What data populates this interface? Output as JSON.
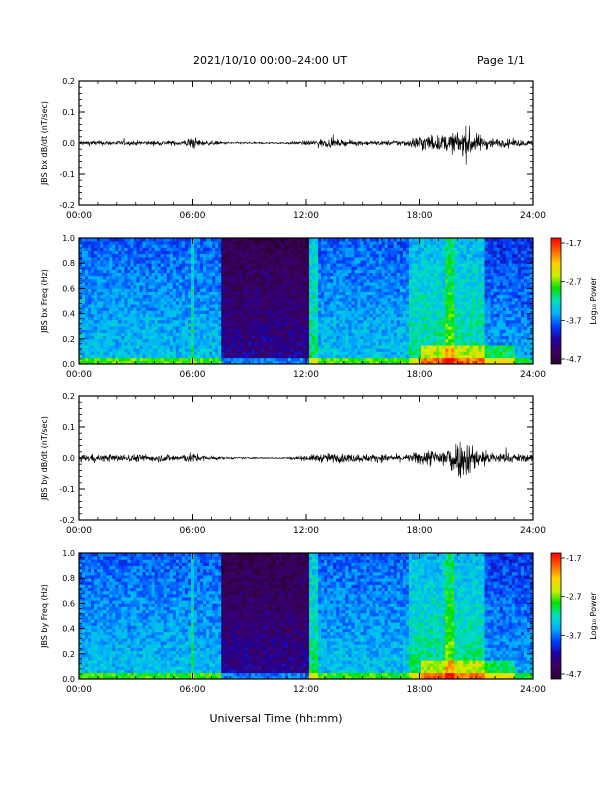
{
  "header": {
    "title": "2021/10/10  00:00–24:00 UT",
    "page": "Page 1/1"
  },
  "colors": {
    "spectrogram_map": [
      "#2a0033",
      "#3d005e",
      "#2000a0",
      "#0040ff",
      "#00b0ff",
      "#00e0c0",
      "#00e000",
      "#c8f000",
      "#ffd000",
      "#ff6000",
      "#ff0000"
    ],
    "trace": "#000000"
  },
  "chart_data": [
    {
      "type": "line",
      "ylabel": "JBS bx dB/dt (nT/sec)",
      "xlabel": "",
      "x_ticks": [
        "00:00",
        "06:00",
        "12:00",
        "18:00",
        "24:00"
      ],
      "xlim": [
        0,
        24
      ],
      "ylim": [
        -0.2,
        0.2
      ],
      "y_ticks": [
        "-0.2",
        "-0.1",
        "0.0",
        "0.1",
        "0.2"
      ],
      "envelope": {
        "hours": [
          0,
          2,
          4,
          5.5,
          6,
          6.5,
          8,
          10,
          11,
          12,
          13,
          14,
          16,
          17.5,
          18,
          19,
          20,
          20.5,
          21,
          22,
          23,
          24
        ],
        "amplitude": [
          0.015,
          0.012,
          0.012,
          0.014,
          0.035,
          0.015,
          0.006,
          0.004,
          0.005,
          0.012,
          0.025,
          0.015,
          0.012,
          0.02,
          0.05,
          0.04,
          0.06,
          0.09,
          0.05,
          0.025,
          0.02,
          0.015
        ]
      }
    },
    {
      "type": "heatmap",
      "ylabel": "JBS bx Freq (Hz)",
      "xlabel": "",
      "x_ticks": [
        "00:00",
        "06:00",
        "12:00",
        "18:00",
        "24:00"
      ],
      "xlim": [
        0,
        24
      ],
      "ylim": [
        0.0,
        1.0
      ],
      "y_ticks": [
        "0.0",
        "0.2",
        "0.4",
        "0.6",
        "0.8",
        "1.0"
      ],
      "colorbar": {
        "label": "Log₁₀ Power",
        "ticks": [
          "-1.7",
          "-2.7",
          "-3.7",
          "-4.7"
        ],
        "range": [
          -4.7,
          -1.7
        ]
      },
      "quiet_interval_hours": [
        7.5,
        12.2
      ]
    },
    {
      "type": "line",
      "ylabel": "JBS by dB/dt (nT/sec)",
      "xlabel": "",
      "x_ticks": [
        "00:00",
        "06:00",
        "12:00",
        "18:00",
        "24:00"
      ],
      "xlim": [
        0,
        24
      ],
      "ylim": [
        -0.2,
        0.2
      ],
      "y_ticks": [
        "-0.2",
        "-0.1",
        "0.0",
        "0.1",
        "0.2"
      ],
      "envelope": {
        "hours": [
          0,
          2,
          4,
          5.5,
          6,
          6.5,
          8,
          10,
          11,
          12,
          13,
          14,
          16,
          17.5,
          18,
          19,
          20,
          20.5,
          21,
          22,
          23,
          24
        ],
        "amplitude": [
          0.02,
          0.02,
          0.02,
          0.02,
          0.03,
          0.015,
          0.005,
          0.003,
          0.004,
          0.015,
          0.025,
          0.025,
          0.02,
          0.02,
          0.04,
          0.05,
          0.1,
          0.11,
          0.06,
          0.03,
          0.025,
          0.02
        ]
      }
    },
    {
      "type": "heatmap",
      "ylabel": "JBS by Freq (Hz)",
      "xlabel": "Universal Time (hh:mm)",
      "x_ticks": [
        "00:00",
        "06:00",
        "12:00",
        "18:00",
        "24:00"
      ],
      "xlim": [
        0,
        24
      ],
      "ylim": [
        0.0,
        1.0
      ],
      "y_ticks": [
        "0.0",
        "0.2",
        "0.4",
        "0.6",
        "0.8",
        "1.0"
      ],
      "colorbar": {
        "label": "Log₁₀ Power",
        "ticks": [
          "-1.7",
          "-2.7",
          "-3.7",
          "-4.7"
        ],
        "range": [
          -4.7,
          -1.7
        ]
      },
      "quiet_interval_hours": [
        7.5,
        12.2
      ]
    }
  ]
}
